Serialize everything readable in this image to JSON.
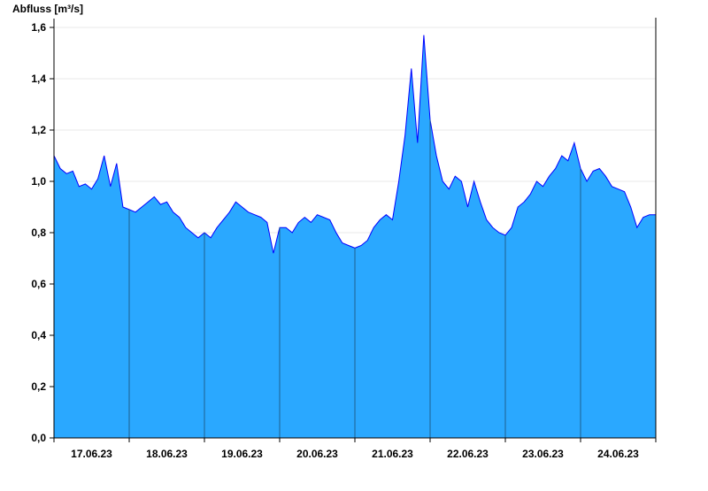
{
  "chart_data": {
    "type": "area",
    "ylabel": "Abfluss [m³/s]",
    "ylim": [
      0,
      1.6
    ],
    "yticks": [
      "0,0",
      "0,2",
      "0,4",
      "0,6",
      "0,8",
      "1,0",
      "1,2",
      "1,4",
      "1,6"
    ],
    "ytick_values": [
      0,
      0.2,
      0.4,
      0.6,
      0.8,
      1.0,
      1.2,
      1.4,
      1.6
    ],
    "xlim": [
      "17.06.23 00:00",
      "25.06.23 00:00"
    ],
    "xtick_labels": [
      "17.06.23",
      "18.06.23",
      "19.06.23",
      "20.06.23",
      "21.06.23",
      "22.06.23",
      "23.06.23",
      "24.06.23"
    ],
    "sample_interval_hours": 2,
    "grid": "horizontal",
    "colors": {
      "fill": "#2aa8ff",
      "line": "#0000ff",
      "grid": "#e8e8e8",
      "day_separator": "#1f5f8f"
    },
    "values": [
      1.1,
      1.05,
      1.03,
      1.04,
      0.98,
      0.99,
      0.97,
      1.01,
      1.1,
      0.98,
      1.07,
      0.9,
      0.89,
      0.88,
      0.9,
      0.92,
      0.94,
      0.91,
      0.92,
      0.88,
      0.86,
      0.82,
      0.8,
      0.78,
      0.8,
      0.78,
      0.82,
      0.85,
      0.88,
      0.92,
      0.9,
      0.88,
      0.87,
      0.86,
      0.84,
      0.72,
      0.82,
      0.82,
      0.8,
      0.84,
      0.86,
      0.84,
      0.87,
      0.86,
      0.85,
      0.8,
      0.76,
      0.75,
      0.74,
      0.75,
      0.77,
      0.82,
      0.85,
      0.87,
      0.85,
      1.0,
      1.18,
      1.44,
      1.15,
      1.57,
      1.24,
      1.1,
      1.0,
      0.97,
      1.02,
      1.0,
      0.9,
      1.0,
      0.92,
      0.85,
      0.82,
      0.8,
      0.79,
      0.82,
      0.9,
      0.92,
      0.95,
      1.0,
      0.98,
      1.02,
      1.05,
      1.1,
      1.08,
      1.15,
      1.05,
      1.0,
      1.04,
      1.05,
      1.02,
      0.98,
      0.97,
      0.96,
      0.9,
      0.82,
      0.86,
      0.87
    ]
  }
}
